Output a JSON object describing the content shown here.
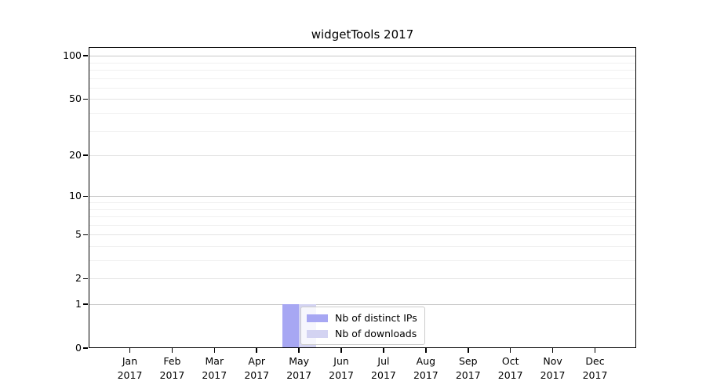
{
  "chart_data": {
    "type": "bar",
    "title": "widgetTools 2017",
    "categories": [
      {
        "month": "Jan",
        "year": "2017"
      },
      {
        "month": "Feb",
        "year": "2017"
      },
      {
        "month": "Mar",
        "year": "2017"
      },
      {
        "month": "Apr",
        "year": "2017"
      },
      {
        "month": "May",
        "year": "2017"
      },
      {
        "month": "Jun",
        "year": "2017"
      },
      {
        "month": "Jul",
        "year": "2017"
      },
      {
        "month": "Aug",
        "year": "2017"
      },
      {
        "month": "Sep",
        "year": "2017"
      },
      {
        "month": "Oct",
        "year": "2017"
      },
      {
        "month": "Nov",
        "year": "2017"
      },
      {
        "month": "Dec",
        "year": "2017"
      }
    ],
    "series": [
      {
        "name": "Nb of distinct IPs",
        "color": "#a7a7f3",
        "values": [
          0,
          0,
          0,
          0,
          1,
          0,
          0,
          0,
          0,
          0,
          0,
          0
        ]
      },
      {
        "name": "Nb of downloads",
        "color": "#d3d3f2",
        "values": [
          0,
          0,
          0,
          0,
          1,
          0,
          0,
          0,
          0,
          0,
          0,
          0
        ]
      }
    ],
    "xlabel": "",
    "ylabel": "",
    "yscale": "log1p",
    "ylim": [
      0,
      115
    ],
    "yticks": [
      0,
      1,
      2,
      5,
      10,
      20,
      50,
      100
    ],
    "major_gridlines": [
      1,
      2,
      5,
      10,
      20,
      50,
      100
    ],
    "decade_gridlines": [
      1,
      10,
      100
    ],
    "minor_gridlines": [
      3,
      4,
      6,
      7,
      8,
      9,
      30,
      40,
      60,
      70,
      80,
      90
    ],
    "grid": "horizontal",
    "legend": {
      "position": "lower-center",
      "entries": [
        "Nb of distinct IPs",
        "Nb of downloads"
      ]
    },
    "colors": {
      "background": "#ffffff",
      "axis": "#000000",
      "grid_minor": "#f0f0f0",
      "grid_major": "#e3e3e3",
      "grid_decade": "#c8c8c8",
      "text": "#000000",
      "legend_border": "#cccccc"
    }
  }
}
